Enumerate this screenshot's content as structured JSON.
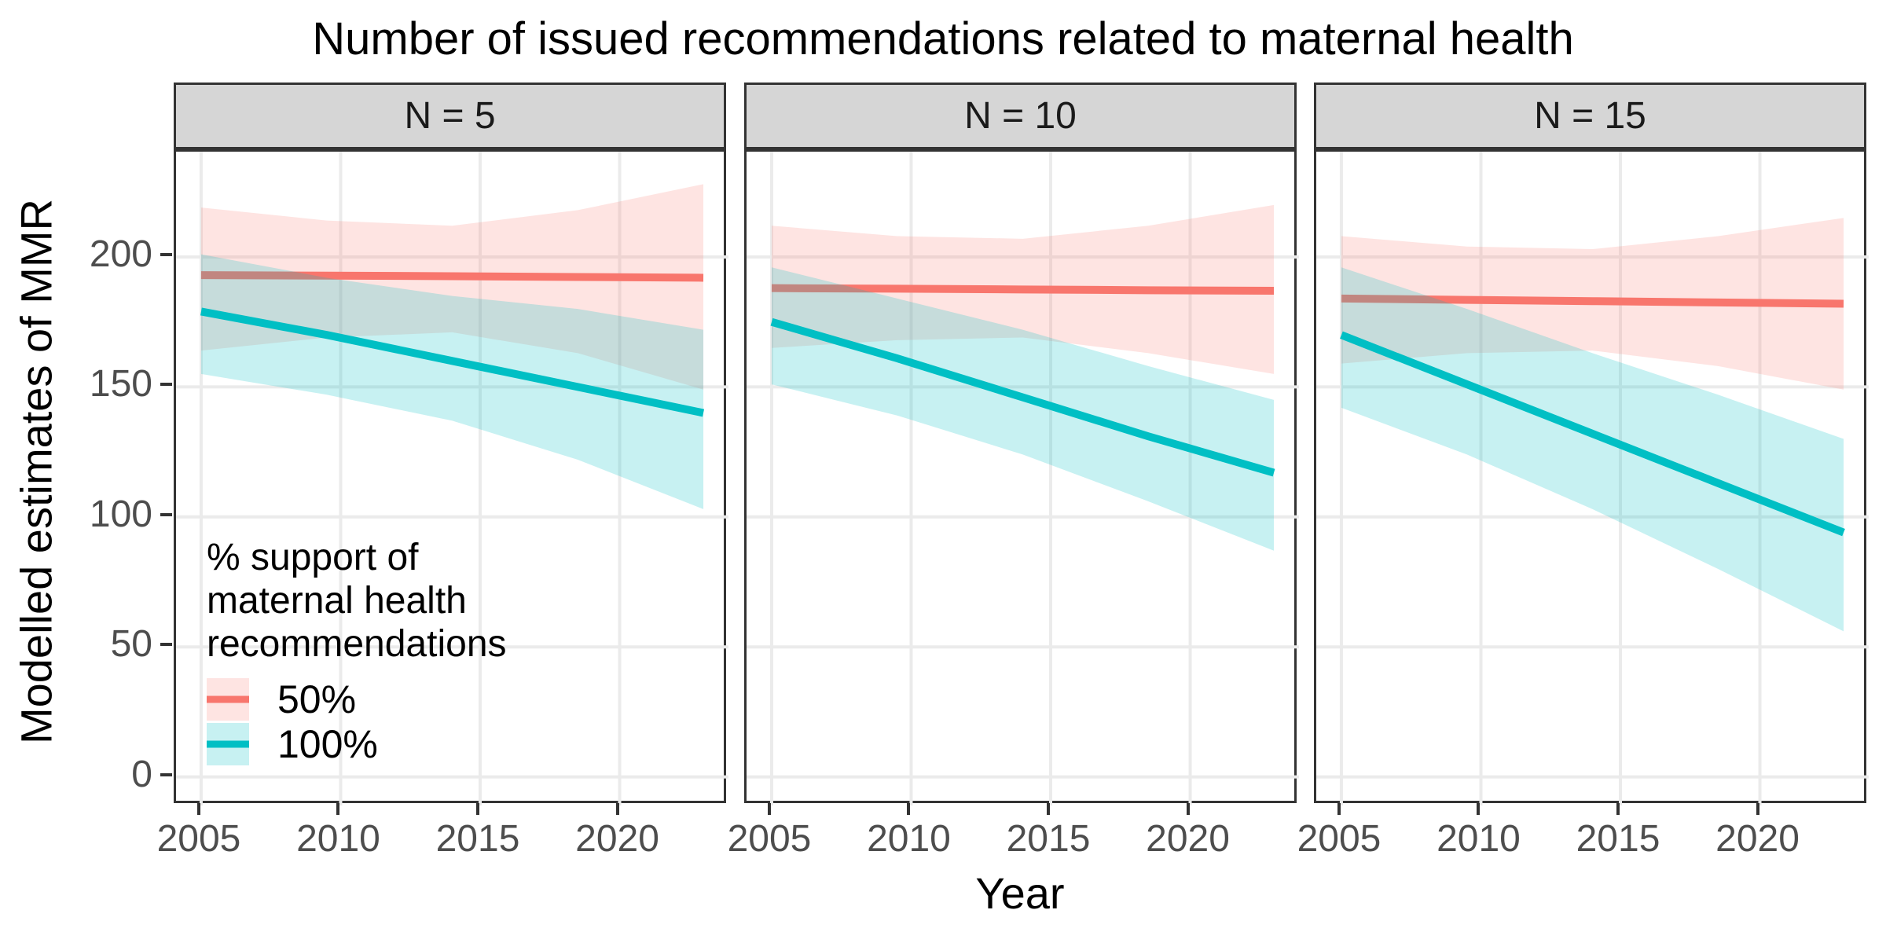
{
  "colors": {
    "line_50": "#F8766D",
    "line_100": "#00BFC4",
    "fill_50": "rgba(248,118,109,0.2)",
    "fill_100": "rgba(0,191,196,0.22)",
    "strip_fill": "#D6D6D6",
    "panel_border": "#333333",
    "gridline": "#EBEBEB",
    "tick_mark": "#333333",
    "tick_text": "#4D4D4D"
  },
  "legend": {
    "title_lines": [
      "% support of",
      "maternal health",
      "recommendations"
    ],
    "items": [
      {
        "label": "50%",
        "stroke": "#F8766D",
        "fill": "rgba(248,118,109,0.2)"
      },
      {
        "label": "100%",
        "stroke": "#00BFC4",
        "fill": "rgba(0,191,196,0.22)"
      }
    ]
  },
  "chart_data": {
    "type": "line",
    "title": "Number of issued recommendations related to maternal health",
    "xlabel": "Year",
    "ylabel": "Modelled estimates of MMR",
    "xlim": [
      2004.1,
      2023.9
    ],
    "ylim": [
      -11,
      240.5
    ],
    "x_ticks": [
      2005,
      2010,
      2015,
      2020
    ],
    "y_ticks": [
      0,
      50,
      100,
      150,
      200
    ],
    "x": [
      2005,
      2009.5,
      2014,
      2018.5,
      2023
    ],
    "grid": "major-only",
    "legend_position": "inside-bottom-left-of-first-panel",
    "panels": [
      {
        "label": "N = 5",
        "series": [
          {
            "name": "50%",
            "line": [
              193,
              192.8,
              192.6,
              192.3,
              192
            ],
            "hi": [
              219,
              214,
              212,
              218,
              228
            ],
            "lo": [
              164,
              169,
              171,
              163,
              149
            ]
          },
          {
            "name": "100%",
            "line": [
              179,
              170,
              160,
              150,
              140
            ],
            "hi": [
              201,
              192,
              185,
              180,
              172
            ],
            "lo": [
              155,
              147,
              137,
              122,
              103
            ]
          }
        ]
      },
      {
        "label": "N = 10",
        "series": [
          {
            "name": "50%",
            "line": [
              188,
              187.8,
              187.5,
              187.2,
              187
            ],
            "hi": [
              212,
              208,
              207,
              212,
              220
            ],
            "lo": [
              165,
              168,
              169,
              163,
              155
            ]
          },
          {
            "name": "100%",
            "line": [
              175,
              161,
              146,
              131,
              117
            ],
            "hi": [
              196,
              184,
              172,
              158,
              145
            ],
            "lo": [
              151,
              139,
              124,
              106,
              87
            ]
          }
        ]
      },
      {
        "label": "N = 15",
        "series": [
          {
            "name": "50%",
            "line": [
              184,
              183.5,
              183,
              182.5,
              182
            ],
            "hi": [
              208,
              204,
              203,
              208,
              215
            ],
            "lo": [
              159,
              163,
              164,
              158,
              149
            ]
          },
          {
            "name": "100%",
            "line": [
              170,
              151,
              132,
              113,
              94
            ],
            "hi": [
              196,
              180,
              163,
              147,
              130
            ],
            "lo": [
              142,
              124,
              103,
              80,
              56
            ]
          }
        ]
      }
    ]
  }
}
